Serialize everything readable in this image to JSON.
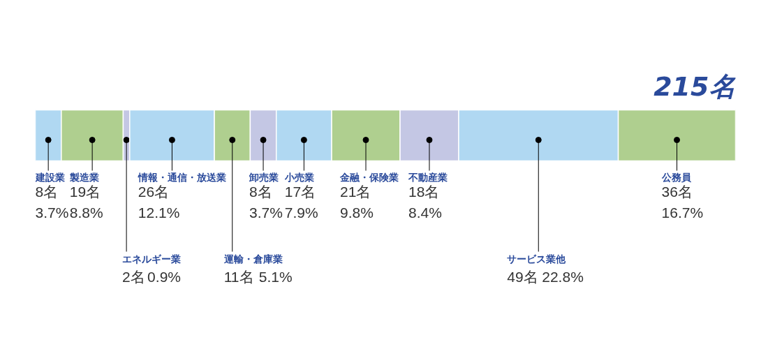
{
  "chart_data": {
    "type": "bar",
    "orientation": "horizontal",
    "stacked": true,
    "categories": [
      null
    ],
    "xlim": [
      0,
      215
    ],
    "tick_labels": false,
    "totals": [
      "215名"
    ],
    "series": [
      {
        "name": "建設業",
        "color": "#b0d8f2",
        "values": [
          8
        ],
        "value_labels": [
          "8名"
        ]
      },
      {
        "name": "製造業",
        "color": "#afcf8f",
        "values": [
          19
        ],
        "value_labels": [
          "19名"
        ]
      },
      {
        "name": "エネルギー業",
        "color": "#c4c7e4",
        "values": [
          2
        ],
        "value_labels": [
          "2名"
        ]
      },
      {
        "name": "情報・通信・放送業",
        "color": "#b0d8f2",
        "values": [
          26
        ],
        "value_labels": [
          "26名"
        ]
      },
      {
        "name": "運輸・倉庫業",
        "color": "#afcf8f",
        "values": [
          11
        ],
        "value_labels": [
          "11名"
        ]
      },
      {
        "name": "卸売業",
        "color": "#c4c7e4",
        "values": [
          8
        ],
        "value_labels": [
          "8名"
        ]
      },
      {
        "name": "小売業",
        "color": "#b0d8f2",
        "values": [
          17
        ],
        "value_labels": [
          "17名"
        ]
      },
      {
        "name": "金融・保険業",
        "color": "#afcf8f",
        "values": [
          21
        ],
        "value_labels": [
          "21名"
        ]
      },
      {
        "name": "不動産業",
        "color": "#c4c7e4",
        "values": [
          18
        ],
        "value_labels": [
          "18名"
        ]
      },
      {
        "name": "サービス業他",
        "color": "#b0d8f2",
        "values": [
          49
        ],
        "value_labels": [
          "49名"
        ]
      },
      {
        "name": "公務員",
        "color": "#afcf8f",
        "values": [
          36
        ],
        "value_labels": [
          "36名"
        ]
      }
    ],
    "annotations": [
      "3.7%",
      "8.8%",
      "0.9%",
      "12.1%",
      "5.1%",
      "3.7%",
      "7.9%",
      "9.8%",
      "8.4%",
      "22.8%",
      "16.7%"
    ]
  }
}
